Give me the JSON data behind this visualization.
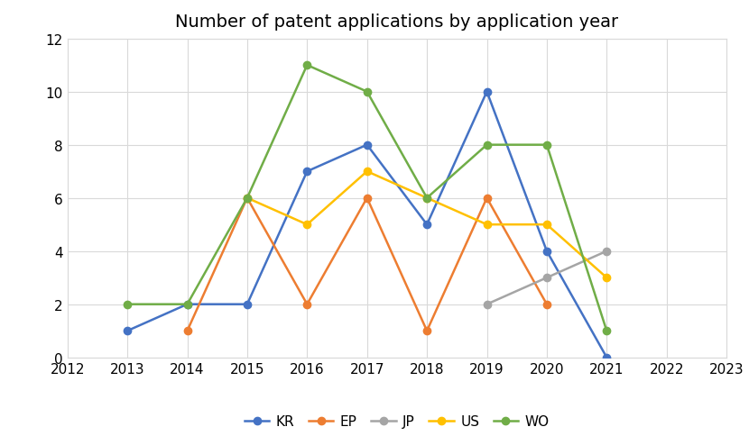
{
  "title": "Number of patent applications by application year",
  "xlim": [
    2012,
    2023
  ],
  "ylim": [
    0,
    12
  ],
  "xticks": [
    2012,
    2013,
    2014,
    2015,
    2016,
    2017,
    2018,
    2019,
    2020,
    2021,
    2022,
    2023
  ],
  "yticks": [
    0,
    2,
    4,
    6,
    8,
    10,
    12
  ],
  "series": {
    "KR": {
      "years": [
        2013,
        2014,
        2015,
        2016,
        2017,
        2018,
        2019,
        2020,
        2021
      ],
      "values": [
        1,
        2,
        2,
        7,
        8,
        5,
        10,
        4,
        0
      ],
      "color": "#4472C4",
      "marker": "o"
    },
    "EP": {
      "years": [
        2014,
        2015,
        2016,
        2017,
        2018,
        2019,
        2020
      ],
      "values": [
        1,
        6,
        2,
        6,
        1,
        6,
        2
      ],
      "color": "#ED7D31",
      "marker": "o"
    },
    "JP": {
      "years": [
        2019,
        2020,
        2021
      ],
      "values": [
        2,
        3,
        4
      ],
      "color": "#A5A5A5",
      "marker": "o"
    },
    "US": {
      "years": [
        2015,
        2016,
        2017,
        2018,
        2019,
        2020,
        2021
      ],
      "values": [
        6,
        5,
        7,
        6,
        5,
        5,
        3
      ],
      "color": "#FFC000",
      "marker": "o"
    },
    "WO": {
      "years": [
        2013,
        2014,
        2015,
        2016,
        2017,
        2018,
        2019,
        2020,
        2021
      ],
      "values": [
        2,
        2,
        6,
        11,
        10,
        6,
        8,
        8,
        1
      ],
      "color": "#70AD47",
      "marker": "o"
    }
  },
  "legend_order": [
    "KR",
    "EP",
    "JP",
    "US",
    "WO"
  ],
  "title_fontsize": 14,
  "tick_fontsize": 11,
  "legend_fontsize": 11,
  "background_color": "#ffffff",
  "grid_color": "#D9D9D9",
  "spine_color": "#D9D9D9"
}
